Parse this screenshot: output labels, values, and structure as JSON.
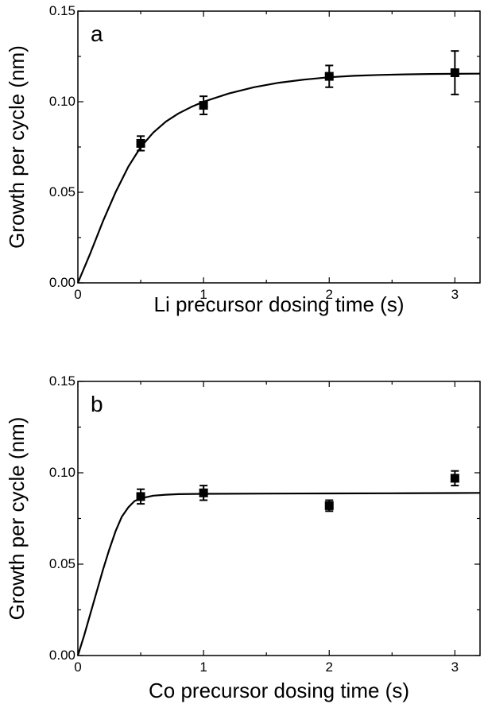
{
  "chart_data": [
    {
      "type": "scatter",
      "panel_label": "a",
      "xlabel": "Li precursor dosing time (s)",
      "ylabel": "Growth per cycle (nm)",
      "xlim": [
        0,
        3.2
      ],
      "ylim": [
        0,
        0.15
      ],
      "x_ticks": [
        0,
        1,
        2,
        3
      ],
      "x_tick_labels": [
        "0",
        "1",
        "2",
        "3"
      ],
      "y_ticks": [
        0,
        0.05,
        0.1,
        0.15
      ],
      "y_tick_labels": [
        "0.00",
        "0.05",
        "0.10",
        "0.15"
      ],
      "grid": false,
      "points": [
        {
          "x": 0.5,
          "y": 0.077,
          "err": 0.004
        },
        {
          "x": 1.0,
          "y": 0.098,
          "err": 0.005
        },
        {
          "x": 2.0,
          "y": 0.114,
          "err": 0.006
        },
        {
          "x": 3.0,
          "y": 0.116,
          "err": 0.012
        }
      ],
      "fit_curve": {
        "x": [
          0,
          0.1,
          0.2,
          0.3,
          0.4,
          0.5,
          0.6,
          0.7,
          0.8,
          0.9,
          1.0,
          1.2,
          1.4,
          1.6,
          1.8,
          2.0,
          2.2,
          2.4,
          2.6,
          2.8,
          3.0,
          3.2
        ],
        "y": [
          0,
          0.0165,
          0.0341,
          0.05,
          0.064,
          0.075,
          0.083,
          0.089,
          0.0935,
          0.097,
          0.1,
          0.1045,
          0.108,
          0.1105,
          0.1122,
          0.1135,
          0.1143,
          0.1148,
          0.1151,
          0.1153,
          0.1154,
          0.1155
        ]
      }
    },
    {
      "type": "scatter",
      "panel_label": "b",
      "xlabel": "Co precursor dosing time (s)",
      "ylabel": "Growth per cycle (nm)",
      "xlim": [
        0,
        3.2
      ],
      "ylim": [
        0,
        0.15
      ],
      "x_ticks": [
        0,
        1,
        2,
        3
      ],
      "x_tick_labels": [
        "0",
        "1",
        "2",
        "3"
      ],
      "y_ticks": [
        0,
        0.05,
        0.1,
        0.15
      ],
      "y_tick_labels": [
        "0.00",
        "0.05",
        "0.10",
        "0.15"
      ],
      "grid": false,
      "points": [
        {
          "x": 0.5,
          "y": 0.087,
          "err": 0.004
        },
        {
          "x": 1.0,
          "y": 0.089,
          "err": 0.004
        },
        {
          "x": 2.0,
          "y": 0.082,
          "err": 0.003
        },
        {
          "x": 3.0,
          "y": 0.097,
          "err": 0.004
        }
      ],
      "fit_curve": {
        "x": [
          0,
          0.05,
          0.1,
          0.15,
          0.2,
          0.25,
          0.3,
          0.35,
          0.4,
          0.45,
          0.5,
          0.6,
          0.7,
          0.8,
          1.0,
          1.5,
          2.0,
          2.5,
          3.0,
          3.2
        ],
        "y": [
          0,
          0.011,
          0.023,
          0.035,
          0.047,
          0.058,
          0.068,
          0.076,
          0.081,
          0.0845,
          0.086,
          0.0875,
          0.088,
          0.0883,
          0.0885,
          0.0886,
          0.0887,
          0.0888,
          0.0889,
          0.089
        ]
      }
    }
  ]
}
